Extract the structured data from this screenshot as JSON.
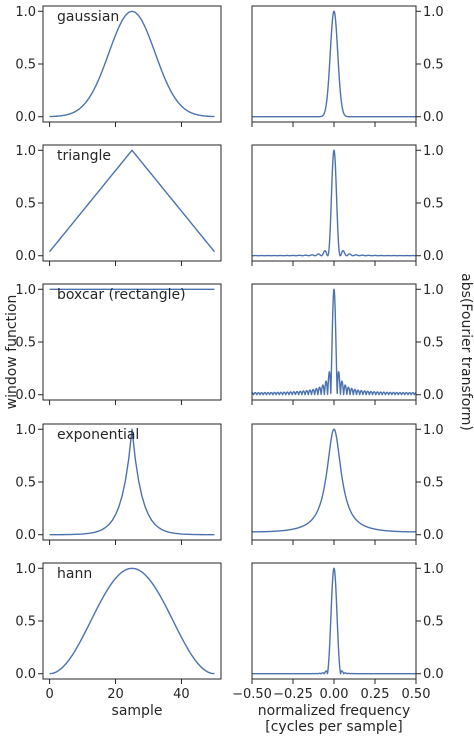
{
  "figure": {
    "ylabel_left": "window function",
    "ylabel_right": "abs(Fourier transform)",
    "xlabel_left": "sample",
    "xlabel_right_line1": "normalized frequency",
    "xlabel_right_line2": "[cycles per sample]"
  },
  "chart_data": [
    {
      "type": "line",
      "panel": "time",
      "title": "gaussian",
      "window": "gaussian",
      "n": 51,
      "xlim": [
        -2,
        52
      ],
      "ylim": [
        -0.05,
        1.05
      ],
      "yticks": [
        "0.0",
        "0.5",
        "1.0"
      ],
      "xticks": [],
      "color": "#4C72B0"
    },
    {
      "type": "line",
      "panel": "time",
      "title": "triangle",
      "window": "triangle",
      "n": 51,
      "xlim": [
        -2,
        52
      ],
      "ylim": [
        -0.05,
        1.05
      ],
      "yticks": [
        "0.0",
        "0.5",
        "1.0"
      ],
      "xticks": [],
      "color": "#4C72B0"
    },
    {
      "type": "line",
      "panel": "time",
      "title": "boxcar (rectangle)",
      "window": "boxcar",
      "n": 51,
      "xlim": [
        -2,
        52
      ],
      "ylim": [
        -0.05,
        1.05
      ],
      "yticks": [
        "0.0",
        "0.5",
        "1.0"
      ],
      "xticks": [],
      "color": "#4C72B0"
    },
    {
      "type": "line",
      "panel": "time",
      "title": "exponential",
      "window": "exponential",
      "n": 51,
      "xlim": [
        -2,
        52
      ],
      "ylim": [
        -0.05,
        1.05
      ],
      "yticks": [
        "0.0",
        "0.5",
        "1.0"
      ],
      "xticks": [],
      "color": "#4C72B0"
    },
    {
      "type": "line",
      "panel": "time",
      "title": "hann",
      "window": "hann",
      "n": 51,
      "xlim": [
        -2,
        52
      ],
      "ylim": [
        -0.05,
        1.05
      ],
      "yticks": [
        "0.0",
        "0.5",
        "1.0"
      ],
      "xticks": [
        "0",
        "20",
        "40"
      ],
      "color": "#4C72B0"
    },
    {
      "type": "line",
      "panel": "freq",
      "window": "gaussian",
      "xlim": [
        -0.5,
        0.5
      ],
      "ylim": [
        -0.05,
        1.05
      ],
      "yticks": [
        "0.0",
        "0.5",
        "1.0"
      ],
      "xticks": [],
      "color": "#4C72B0"
    },
    {
      "type": "line",
      "panel": "freq",
      "window": "triangle",
      "xlim": [
        -0.5,
        0.5
      ],
      "ylim": [
        -0.05,
        1.05
      ],
      "yticks": [
        "0.0",
        "0.5",
        "1.0"
      ],
      "xticks": [],
      "color": "#4C72B0"
    },
    {
      "type": "line",
      "panel": "freq",
      "window": "boxcar",
      "xlim": [
        -0.5,
        0.5
      ],
      "ylim": [
        -0.05,
        1.05
      ],
      "yticks": [
        "0.0",
        "0.5",
        "1.0"
      ],
      "xticks": [],
      "color": "#4C72B0"
    },
    {
      "type": "line",
      "panel": "freq",
      "window": "exponential",
      "xlim": [
        -0.5,
        0.5
      ],
      "ylim": [
        -0.05,
        1.05
      ],
      "yticks": [
        "0.0",
        "0.5",
        "1.0"
      ],
      "xticks": [],
      "color": "#4C72B0"
    },
    {
      "type": "line",
      "panel": "freq",
      "window": "hann",
      "xlim": [
        -0.5,
        0.5
      ],
      "ylim": [
        -0.05,
        1.05
      ],
      "yticks": [
        "0.0",
        "0.5",
        "1.0"
      ],
      "xticks": [
        "−0.50",
        "−0.25",
        "0.00",
        "0.25",
        "0.50"
      ],
      "color": "#4C72B0"
    }
  ]
}
